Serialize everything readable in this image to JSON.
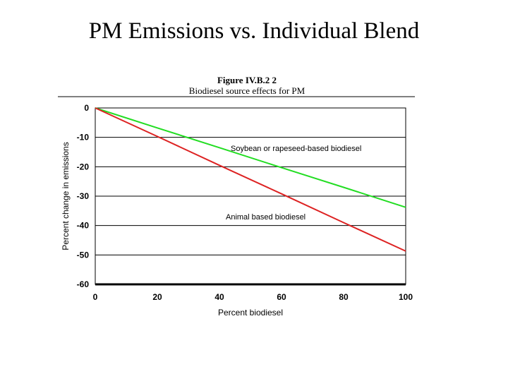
{
  "slide": {
    "title": "PM Emissions vs. Individual Blend"
  },
  "chart_data": {
    "type": "line",
    "title": "Figure IV.B.2 2",
    "subtitle": "Biodiesel source effects for PM",
    "xlabel": "Percent biodiesel",
    "ylabel": "Percent change in emissions",
    "xlim": [
      0,
      100
    ],
    "ylim": [
      -60,
      0
    ],
    "xticks": [
      "0",
      "20",
      "40",
      "60",
      "80",
      "100"
    ],
    "yticks": [
      "0",
      "-10",
      "-20",
      "-30",
      "-40",
      "-50",
      "-60"
    ],
    "grid": "horizontal",
    "series": [
      {
        "name": "Soybean or rapeseed-based biodiesel",
        "color": "#22dd22",
        "x": [
          0,
          20,
          40,
          60,
          80,
          100
        ],
        "y": [
          0,
          -6.8,
          -13.5,
          -20.3,
          -27.0,
          -33.8
        ]
      },
      {
        "name": "Animal based biodiesel",
        "color": "#dd2222",
        "x": [
          0,
          20,
          40,
          60,
          80,
          100
        ],
        "y": [
          0,
          -9.7,
          -19.5,
          -29.2,
          -39.0,
          -48.7
        ]
      }
    ]
  }
}
